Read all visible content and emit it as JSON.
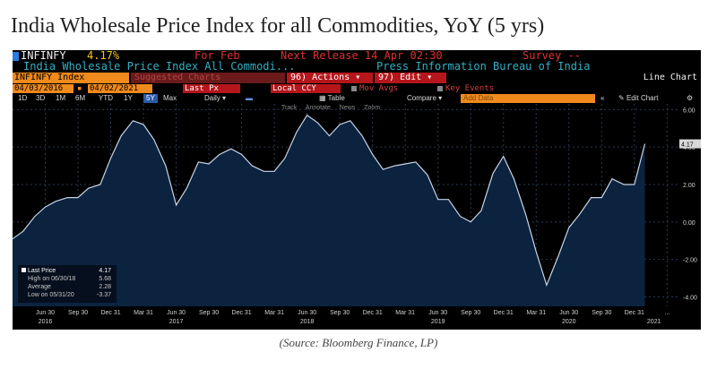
{
  "page": {
    "title": "India Wholesale Price Index for all Commodities, YoY (5 yrs)",
    "credit": "(Source: Bloomberg Finance, LP)"
  },
  "terminal": {
    "ticker": "INFINFY",
    "last_value": "4.17%",
    "period": "For Feb",
    "next_release": "Next Release 14 Apr 02:30",
    "survey": "Survey --",
    "description": "India Wholesale Price Index All Commodi...",
    "source": "Press Information Bureau of India",
    "index_box": "INFINFY Index",
    "ghost_label": "Suggested Charts",
    "actions": "96) Actions",
    "edit": "97) Edit",
    "chart_kind": "Line Chart",
    "date_from": "04/03/2016",
    "date_to": "04/02/2021",
    "price_field": "Last Px",
    "currency": "Local CCY",
    "mov_avgs": "Mov Avgs",
    "key_events": "Key Events",
    "ranges": [
      "1D",
      "3D",
      "1M",
      "6M",
      "YTD",
      "1Y",
      "5Y",
      "Max"
    ],
    "active_range": "5Y",
    "frequency": "Daily",
    "table": "Table",
    "compare": "Compare",
    "add_data": "Add Data",
    "edit_chart": "Edit Chart",
    "tools": [
      "Track",
      "Annotate",
      "News",
      "Zoom"
    ],
    "colors": {
      "accent_orange": "#f08a1c",
      "header_yellow": "#f5c518",
      "header_red": "#e03030",
      "active_blue": "#2b5aa8",
      "series_fill": "#0c2340",
      "series_line": "#c8d4e6"
    }
  },
  "chart_data": {
    "type": "area",
    "series": [
      {
        "values": [
          [
            2016.25,
            -0.9
          ],
          [
            2016.33,
            -0.5
          ],
          [
            2016.42,
            0.3
          ],
          [
            2016.5,
            0.8
          ],
          [
            2016.58,
            1.1
          ],
          [
            2016.67,
            1.3
          ],
          [
            2016.75,
            1.3
          ],
          [
            2016.83,
            1.8
          ],
          [
            2016.92,
            2.0
          ],
          [
            2017.0,
            3.4
          ],
          [
            2017.08,
            4.6
          ],
          [
            2017.17,
            5.4
          ],
          [
            2017.25,
            5.2
          ],
          [
            2017.33,
            4.4
          ],
          [
            2017.42,
            3.0
          ],
          [
            2017.5,
            0.9
          ],
          [
            2017.58,
            1.8
          ],
          [
            2017.67,
            3.2
          ],
          [
            2017.75,
            3.1
          ],
          [
            2017.83,
            3.6
          ],
          [
            2017.92,
            3.9
          ],
          [
            2018.0,
            3.6
          ],
          [
            2018.08,
            3.0
          ],
          [
            2018.17,
            2.7
          ],
          [
            2018.25,
            2.7
          ],
          [
            2018.33,
            3.4
          ],
          [
            2018.42,
            4.8
          ],
          [
            2018.5,
            5.7
          ],
          [
            2018.58,
            5.3
          ],
          [
            2018.67,
            4.6
          ],
          [
            2018.75,
            5.2
          ],
          [
            2018.83,
            5.4
          ],
          [
            2018.92,
            4.6
          ],
          [
            2019.0,
            3.6
          ],
          [
            2019.08,
            2.8
          ],
          [
            2019.17,
            3.0
          ],
          [
            2019.25,
            3.1
          ],
          [
            2019.33,
            3.2
          ],
          [
            2019.42,
            2.5
          ],
          [
            2019.5,
            1.2
          ],
          [
            2019.58,
            1.2
          ],
          [
            2019.67,
            0.3
          ],
          [
            2019.75,
            0.0
          ],
          [
            2019.83,
            0.6
          ],
          [
            2019.92,
            2.6
          ],
          [
            2020.0,
            3.5
          ],
          [
            2020.08,
            2.3
          ],
          [
            2020.17,
            0.4
          ],
          [
            2020.25,
            -1.6
          ],
          [
            2020.33,
            -3.37
          ],
          [
            2020.42,
            -1.8
          ],
          [
            2020.5,
            -0.3
          ],
          [
            2020.58,
            0.4
          ],
          [
            2020.67,
            1.3
          ],
          [
            2020.75,
            1.3
          ],
          [
            2020.83,
            2.3
          ],
          [
            2020.92,
            2.0
          ],
          [
            2021.0,
            2.0
          ],
          [
            2021.08,
            4.17
          ]
        ]
      }
    ],
    "xlim": [
      2016.25,
      2021.33
    ],
    "ylim": [
      -4.5,
      6.3
    ],
    "y_ticks": [
      "6.00",
      "4.00",
      "2.00",
      "0.00",
      "-2.00",
      "-4.00"
    ],
    "y_tick_values": [
      6,
      4,
      2,
      0,
      -2,
      -4
    ],
    "x_ticks": [
      {
        "label": "Jun 30",
        "v": 2016.5
      },
      {
        "label": "Sep 30",
        "v": 2016.75
      },
      {
        "label": "Dec 31",
        "v": 2017.0
      },
      {
        "label": "Mar 31",
        "v": 2017.25
      },
      {
        "label": "Jun 30",
        "v": 2017.5
      },
      {
        "label": "Sep 30",
        "v": 2017.75
      },
      {
        "label": "Dec 31",
        "v": 2018.0
      },
      {
        "label": "Mar 31",
        "v": 2018.25
      },
      {
        "label": "Jun 30",
        "v": 2018.5
      },
      {
        "label": "Sep 30",
        "v": 2018.75
      },
      {
        "label": "Dec 31",
        "v": 2019.0
      },
      {
        "label": "Mar 31",
        "v": 2019.25
      },
      {
        "label": "Jun 30",
        "v": 2019.5
      },
      {
        "label": "Sep 30",
        "v": 2019.75
      },
      {
        "label": "Dec 31",
        "v": 2020.0
      },
      {
        "label": "Mar 31",
        "v": 2020.25
      },
      {
        "label": "Jun 30",
        "v": 2020.5
      },
      {
        "label": "Sep 30",
        "v": 2020.75
      },
      {
        "label": "Dec 31",
        "v": 2021.0
      },
      {
        "label": "...",
        "v": 2021.25
      }
    ],
    "year_labels": [
      {
        "label": "2016",
        "v": 2016.5
      },
      {
        "label": "2017",
        "v": 2017.5
      },
      {
        "label": "2018",
        "v": 2018.5
      },
      {
        "label": "2019",
        "v": 2019.5
      },
      {
        "label": "2020",
        "v": 2020.5
      },
      {
        "label": "2021",
        "v": 2021.15
      }
    ],
    "last_price_tag": "4.17",
    "legend": [
      {
        "label": "Last Price",
        "value": "4.17"
      },
      {
        "label": "High on 06/30/18",
        "value": "5.68"
      },
      {
        "label": "Average",
        "value": "2.28"
      },
      {
        "label": "Low on 05/31/20",
        "value": "-3.37"
      }
    ],
    "grid": true
  }
}
